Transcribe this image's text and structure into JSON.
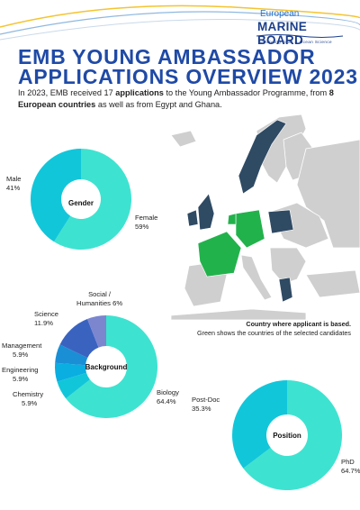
{
  "logo": {
    "line1": "European",
    "line2": "MARINE BOARD",
    "tagline": "Advancing Seas & Ocean Science"
  },
  "title": {
    "line1": "EMB YOUNG AMBASSADOR",
    "line2": "APPLICATIONS OVERVIEW 2023"
  },
  "intro": {
    "part1": "In 2023, EMB received 17 ",
    "bold1": "applications",
    "part2": " to the Young Ambassador Programme, from ",
    "bold2": "8 European countries",
    "part3": " as well as from Egypt and Ghana."
  },
  "map_note": {
    "title": "Country where applicant is based.",
    "subtitle": "Green shows the countries of the selected candidates"
  },
  "colors": {
    "title": "#1f4aa6",
    "turquoise": "#3de3d0",
    "cyan": "#12c6da",
    "navy_country": "#2f4a63",
    "green_country": "#22b24c",
    "grey_country": "#cfcfcf"
  },
  "chart_data": [
    {
      "type": "pie",
      "title": "Gender",
      "categories": [
        "Male",
        "Female"
      ],
      "values": [
        41,
        59
      ],
      "value_labels": [
        "41%",
        "59%"
      ],
      "colors": [
        "#12c6da",
        "#3de3d0"
      ]
    },
    {
      "type": "pie",
      "title": "Background",
      "categories": [
        "Biology",
        "Chemistry",
        "Engineering",
        "Management",
        "Science",
        "Social / Humanities"
      ],
      "values": [
        64.4,
        5.9,
        5.9,
        5.9,
        11.9,
        6
      ],
      "value_labels": [
        "64.4%",
        "5.9%",
        "5.9%",
        "5.9%",
        "11.9%",
        "6%"
      ],
      "colors": [
        "#3de3d0",
        "#12c6da",
        "#0aaee0",
        "#1a8fd6",
        "#3a63c0",
        "#7b86cf"
      ]
    },
    {
      "type": "pie",
      "title": "Position",
      "categories": [
        "PhD",
        "Post-Doc"
      ],
      "values": [
        64.7,
        35.3
      ],
      "value_labels": [
        "64.7%",
        "35.3%"
      ],
      "colors": [
        "#3de3d0",
        "#12c6da"
      ]
    }
  ]
}
